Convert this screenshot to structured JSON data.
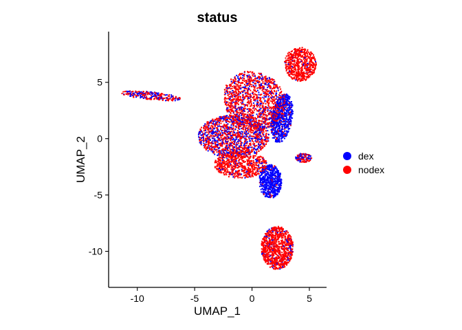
{
  "chart_data": {
    "type": "scatter",
    "title": "status",
    "xlabel": "UMAP_1",
    "ylabel": "UMAP_2",
    "xlim": [
      -12.5,
      6.5
    ],
    "ylim": [
      -13.2,
      9.5
    ],
    "x_ticks": [
      -10,
      -5,
      0,
      5
    ],
    "y_ticks": [
      5,
      0,
      -5,
      -10
    ],
    "legend_position": "right",
    "grid": false,
    "series": [
      {
        "name": "dex",
        "color": "#0000FF"
      },
      {
        "name": "nodex",
        "color": "#FF0000"
      }
    ],
    "clusters": [
      {
        "label": "left-streak",
        "cx": -8.8,
        "cy": 3.8,
        "rx": 2.6,
        "ry": 0.35,
        "n": 260,
        "dex_frac": 0.45,
        "angle": -6
      },
      {
        "label": "upper-large",
        "cx": 0.2,
        "cy": 3.4,
        "rx": 2.8,
        "ry": 2.5,
        "n": 1300,
        "dex_frac": 0.22,
        "angle": -35
      },
      {
        "label": "center-mixed",
        "cx": -1.6,
        "cy": 0.2,
        "rx": 3.1,
        "ry": 1.9,
        "n": 1400,
        "dex_frac": 0.38,
        "angle": 0
      },
      {
        "label": "lower-left-red",
        "cx": -1.0,
        "cy": -2.3,
        "rx": 2.3,
        "ry": 1.2,
        "n": 650,
        "dex_frac": 0.1,
        "angle": 0
      },
      {
        "label": "top-right-red",
        "cx": 4.2,
        "cy": 6.6,
        "rx": 1.4,
        "ry": 1.5,
        "n": 620,
        "dex_frac": 0.04,
        "angle": 0
      },
      {
        "label": "right-blue-column",
        "cx": 2.6,
        "cy": 1.8,
        "rx": 0.9,
        "ry": 2.2,
        "n": 700,
        "dex_frac": 0.85,
        "angle": -10
      },
      {
        "label": "blue-blob",
        "cx": 1.6,
        "cy": -3.8,
        "rx": 1.0,
        "ry": 1.5,
        "n": 600,
        "dex_frac": 0.92,
        "angle": 0
      },
      {
        "label": "small-right-island",
        "cx": 4.5,
        "cy": -1.7,
        "rx": 0.7,
        "ry": 0.4,
        "n": 130,
        "dex_frac": 0.45,
        "angle": 0
      },
      {
        "label": "bottom-red",
        "cx": 2.2,
        "cy": -9.7,
        "rx": 1.4,
        "ry": 1.9,
        "n": 950,
        "dex_frac": 0.08,
        "angle": 0
      }
    ]
  }
}
